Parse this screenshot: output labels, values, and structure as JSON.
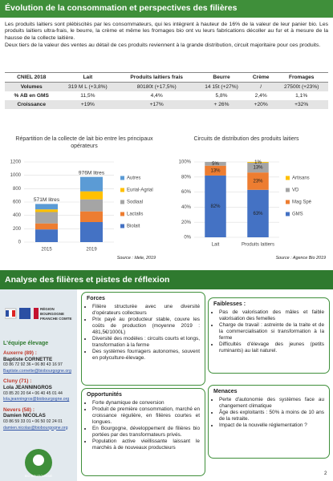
{
  "header": {
    "title": "Évolution de la consommation et perspectives des filières"
  },
  "intro": [
    "Les produits laitiers sont plébiscités par les consommateurs, qui les intègrent à hauteur de 16% de la valeur de leur panier bio. Les produits laitiers ultra-frais, le beurre, la crème et même les fromages bio ont vu leurs fabrications décoller au fur et à mesure de la hausse de la collecte laitière.",
    "Deux tiers de la valeur des ventes au détail de ces produits reviennent à la grande distribution, circuit majoritaire pour ces produits."
  ],
  "table": {
    "header": [
      "CNIEL 2018",
      "Lait",
      "Produits laitiers frais",
      "Beurre",
      "Crème",
      "Fromages"
    ],
    "rows": [
      [
        "Volumes",
        "319 M L (+3,8%)",
        "80180t (+17,5%)",
        "14 15t (+27%)",
        "/",
        "27500t (+23%)"
      ],
      [
        "% AB en GMS",
        "11,5%",
        "4,4%",
        "5,8%",
        "2,4%",
        "1,1%"
      ],
      [
        "Croissance",
        "+19%",
        "+17%",
        "+ 26%",
        "+20%",
        "+32%"
      ]
    ]
  },
  "chart_data": [
    {
      "type": "stacked_bar",
      "title": "Répartition de la collecte de lait bio entre les principaux opérateurs",
      "source": "Source : Idele, 2019",
      "categories": [
        "2015",
        "2019"
      ],
      "series": [
        {
          "name": "Biolait",
          "color": "#4472c4",
          "values": [
            190,
            300
          ]
        },
        {
          "name": "Lactalis",
          "color": "#ed7d31",
          "values": [
            90,
            160
          ]
        },
        {
          "name": "Sodiaal",
          "color": "#a5a5a5",
          "values": [
            170,
            180
          ]
        },
        {
          "name": "Eurial-Agrial",
          "color": "#ffc000",
          "values": [
            40,
            120
          ]
        },
        {
          "name": "Autres",
          "color": "#5b9bd5",
          "values": [
            81,
            216
          ]
        }
      ],
      "annotations": [
        "571M litres",
        "976M litres"
      ],
      "ylim": [
        0,
        1200
      ],
      "yticks": [
        0,
        200,
        400,
        600,
        800,
        1000,
        1200
      ],
      "grid": true
    },
    {
      "type": "stacked_bar",
      "title": "Circuits de distribution des produits laitiers",
      "source": "Source : Agence Bio 2019",
      "categories": [
        "Lait",
        "Produits laitiers"
      ],
      "series": [
        {
          "name": "GMS",
          "color": "#4472c4",
          "values": [
            82,
            63
          ],
          "value_labels": [
            "82%",
            "63%"
          ]
        },
        {
          "name": "Mag Spé",
          "color": "#ed7d31",
          "values": [
            13,
            23
          ],
          "value_labels": [
            "13%",
            "23%"
          ]
        },
        {
          "name": "VD",
          "color": "#a5a5a5",
          "values": [
            5,
            13
          ],
          "value_labels": [
            "5%",
            "13%"
          ]
        },
        {
          "name": "Artisans",
          "color": "#ffc000",
          "values": [
            0,
            1
          ],
          "value_labels": [
            null,
            "1%"
          ]
        }
      ],
      "ylim": [
        0,
        100
      ],
      "yticks": [
        {
          "value": 0,
          "label": "0%"
        },
        {
          "value": 20,
          "label": "20%"
        },
        {
          "value": 40,
          "label": "40%"
        },
        {
          "value": 60,
          "label": "60%"
        },
        {
          "value": 80,
          "label": "80%"
        },
        {
          "value": 100,
          "label": "100%"
        }
      ],
      "grid": true
    }
  ],
  "section2": {
    "title": "Analyse des filières et pistes de réflexion"
  },
  "sidebar": {
    "region": "RÉGION BOURGOGNE FRANCHE COMTE",
    "team": "L'équipe élevage",
    "contacts": [
      [
        "Auxerre (89) :",
        "Baptiste CORNETTE",
        "03 86 72 92 36 • 06 80 43 16 97",
        "Baptiste.cornette@biobourgogne.org"
      ],
      [
        "Cluny (71) :",
        "Lola JEANNINGROS",
        "03 85 20 20 64 • 06 40 45 01 44",
        "lola.jeanningros@biobourgogne.org"
      ],
      [
        "Nevers (58) :",
        "Damien NICOLAS",
        "03 86 59 33 01 • 06 50 02 24 01",
        "damien.nicolas@biobourgogne.org"
      ]
    ],
    "logo": "BIO BOURGOGNE"
  },
  "swot": {
    "forces": {
      "title": "Forces",
      "items": [
        "Filière structurée avec une diversité d'opérateurs collecteurs",
        "Prix payé au producteur stable, couvre les coûts de production (moyenne 2019 : 481,5€/1000L)",
        "Diversité des modèles : circuits courts et longs, transformation à la ferme",
        "Des systèmes fourragers autonomes, souvent en polyculture-élevage."
      ]
    },
    "faiblesses": {
      "title": "Faiblesses :",
      "items": [
        "Pas de valorisation des mâles et faible valorisation des femelles",
        "Charge de travail : astreinte de la traite et de la commercialisation si transformation à la ferme",
        "Difficultés d'élevage des jeunes (petits ruminants) au lait naturel."
      ]
    },
    "opportunites": {
      "title": "Opportunités",
      "items": [
        "Forte dynamique de conversion",
        "Produit de première consommation, marché en croissance régulière, en filières courtes et longues.",
        "En Bourgogne, développement de filières bio portées par des transformateurs privés.",
        "Population active vieillissante laissant le marchés à de nouveaux producteurs"
      ]
    },
    "menaces": {
      "title": "Menaces",
      "items": [
        "Perte d'autonomie des systèmes face au changement climatique",
        "Âge des exploitants : 50% à moins de 10 ans de la retraite.",
        "Impact de la nouvelle réglementation ?"
      ]
    }
  },
  "page": "2"
}
